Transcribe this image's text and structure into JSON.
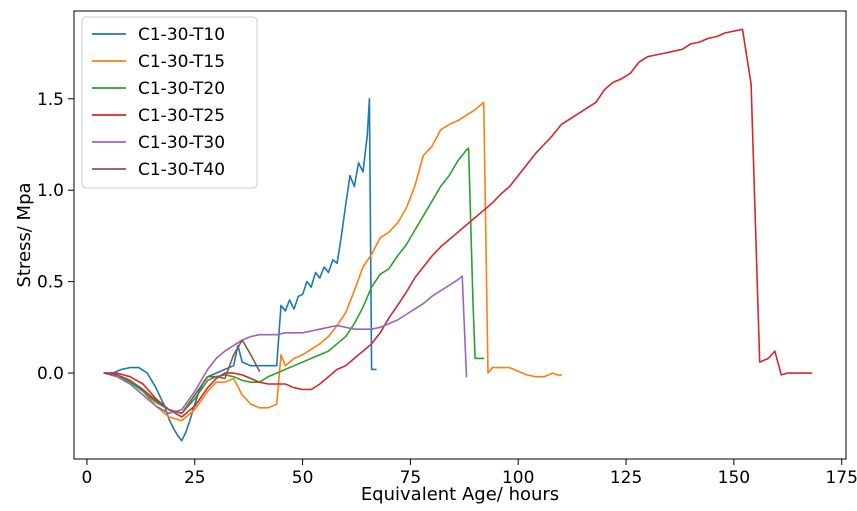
{
  "chart_data": {
    "type": "line",
    "title": "",
    "xlabel": "Equivalent Age/ hours",
    "ylabel": "Stress/ Mpa",
    "xlim": [
      -3,
      176
    ],
    "ylim": [
      -0.47,
      1.98
    ],
    "xticks": [
      0,
      25,
      50,
      75,
      100,
      125,
      150,
      175
    ],
    "yticks": [
      0.0,
      0.5,
      1.0,
      1.5
    ],
    "ytick_labels": [
      "0.0",
      "0.5",
      "1.0",
      "1.5"
    ],
    "grid": false,
    "legend_position": "upper-left",
    "series": [
      {
        "name": "C1-30-T10",
        "color": "#1f77b4",
        "x": [
          4,
          6,
          8,
          10,
          12,
          14,
          16,
          18,
          19,
          20,
          21,
          22,
          23,
          24,
          25,
          26,
          27,
          28,
          30,
          32,
          34,
          35,
          36,
          38,
          40,
          42,
          44,
          45,
          46,
          47,
          48,
          49,
          50,
          51,
          52,
          53,
          54,
          55,
          56,
          57,
          58,
          59,
          60,
          61,
          62,
          63,
          64,
          65,
          65.5,
          66,
          66.5,
          67
        ],
        "y": [
          0.0,
          0.0,
          0.02,
          0.03,
          0.03,
          0.0,
          -0.08,
          -0.18,
          -0.25,
          -0.3,
          -0.34,
          -0.37,
          -0.32,
          -0.25,
          -0.17,
          -0.1,
          -0.05,
          -0.02,
          0.0,
          0.02,
          0.04,
          0.15,
          0.06,
          0.04,
          0.04,
          0.04,
          0.04,
          0.37,
          0.34,
          0.4,
          0.35,
          0.42,
          0.43,
          0.5,
          0.47,
          0.55,
          0.52,
          0.58,
          0.55,
          0.62,
          0.6,
          0.75,
          0.92,
          1.08,
          1.02,
          1.15,
          1.1,
          1.3,
          1.5,
          0.02,
          0.02,
          0.02
        ]
      },
      {
        "name": "C1-30-T15",
        "color": "#ff7f0e",
        "x": [
          4,
          7,
          10,
          13,
          16,
          19,
          22,
          25,
          28,
          30,
          32,
          34,
          36,
          38,
          40,
          42,
          44,
          45,
          46,
          48,
          50,
          52,
          54,
          56,
          58,
          60,
          62,
          64,
          66,
          68,
          70,
          72,
          74,
          76,
          78,
          80,
          82,
          84,
          86,
          88,
          90,
          92,
          93,
          94,
          96,
          98,
          100,
          102,
          104,
          106,
          108,
          109,
          110
        ],
        "y": [
          0.0,
          -0.01,
          -0.04,
          -0.1,
          -0.18,
          -0.24,
          -0.26,
          -0.2,
          -0.1,
          -0.05,
          -0.05,
          -0.03,
          -0.12,
          -0.17,
          -0.19,
          -0.19,
          -0.17,
          0.1,
          0.04,
          0.08,
          0.1,
          0.13,
          0.16,
          0.2,
          0.26,
          0.33,
          0.45,
          0.58,
          0.65,
          0.74,
          0.77,
          0.82,
          0.9,
          1.02,
          1.19,
          1.24,
          1.33,
          1.36,
          1.38,
          1.41,
          1.44,
          1.48,
          0.0,
          0.03,
          0.03,
          0.03,
          0.01,
          -0.01,
          -0.02,
          -0.02,
          0.0,
          -0.01,
          -0.01
        ]
      },
      {
        "name": "C1-30-T20",
        "color": "#2ca02c",
        "x": [
          4,
          7,
          10,
          13,
          16,
          19,
          22,
          25,
          28,
          30,
          32,
          34,
          36,
          38,
          40,
          42,
          44,
          46,
          48,
          50,
          52,
          54,
          56,
          58,
          60,
          62,
          64,
          66,
          68,
          70,
          72,
          74,
          76,
          78,
          80,
          82,
          84,
          86,
          88,
          88.5,
          89.5,
          90,
          91,
          92
        ],
        "y": [
          0.0,
          -0.01,
          -0.05,
          -0.1,
          -0.16,
          -0.2,
          -0.22,
          -0.14,
          -0.04,
          -0.02,
          -0.01,
          -0.02,
          -0.04,
          -0.05,
          -0.05,
          -0.02,
          0.0,
          0.02,
          0.04,
          0.06,
          0.08,
          0.1,
          0.12,
          0.16,
          0.2,
          0.27,
          0.36,
          0.47,
          0.54,
          0.57,
          0.64,
          0.7,
          0.78,
          0.86,
          0.94,
          1.02,
          1.08,
          1.16,
          1.22,
          1.23,
          0.4,
          0.08,
          0.08,
          0.08
        ]
      },
      {
        "name": "C1-30-T25",
        "color": "#d62728",
        "x": [
          4,
          7,
          10,
          13,
          16,
          19,
          22,
          25,
          28,
          30,
          32,
          34,
          36,
          38,
          40,
          42,
          44,
          46,
          48,
          50,
          52,
          54,
          56,
          58,
          60,
          62,
          64,
          66,
          68,
          70,
          72,
          74,
          76,
          78,
          80,
          82,
          84,
          86,
          88,
          90,
          92,
          94,
          96,
          98,
          100,
          102,
          104,
          106,
          108,
          110,
          112,
          114,
          116,
          118,
          120,
          122,
          124,
          126,
          128,
          130,
          132,
          134,
          136,
          138,
          140,
          142,
          144,
          146,
          148,
          150,
          152,
          154,
          156,
          158,
          159.5,
          161,
          162.5,
          164,
          167,
          168
        ],
        "y": [
          0.0,
          0.0,
          -0.02,
          -0.06,
          -0.14,
          -0.2,
          -0.24,
          -0.18,
          -0.08,
          -0.03,
          0.0,
          0.0,
          -0.01,
          -0.03,
          -0.05,
          -0.06,
          -0.06,
          -0.06,
          -0.08,
          -0.09,
          -0.09,
          -0.06,
          -0.02,
          0.02,
          0.04,
          0.08,
          0.12,
          0.16,
          0.22,
          0.3,
          0.37,
          0.44,
          0.52,
          0.58,
          0.64,
          0.69,
          0.73,
          0.77,
          0.81,
          0.85,
          0.89,
          0.93,
          0.98,
          1.02,
          1.08,
          1.14,
          1.2,
          1.25,
          1.3,
          1.36,
          1.39,
          1.42,
          1.45,
          1.48,
          1.55,
          1.59,
          1.61,
          1.64,
          1.7,
          1.73,
          1.74,
          1.75,
          1.76,
          1.77,
          1.8,
          1.81,
          1.83,
          1.84,
          1.86,
          1.87,
          1.88,
          1.58,
          0.06,
          0.08,
          0.12,
          -0.01,
          0.0,
          0.0,
          0.0,
          0.0
        ],
        "y_override_note": ""
      },
      {
        "name": "C1-30-T30",
        "color": "#9467bd",
        "x": [
          4,
          7,
          10,
          13,
          16,
          19,
          22,
          25,
          28,
          30,
          32,
          34,
          36,
          38,
          40,
          42,
          44,
          46,
          48,
          50,
          52,
          54,
          56,
          58,
          60,
          62,
          64,
          66,
          68,
          70,
          72,
          74,
          76,
          78,
          80,
          82,
          84,
          86,
          87,
          88
        ],
        "y": [
          0.0,
          -0.02,
          -0.06,
          -0.12,
          -0.18,
          -0.22,
          -0.2,
          -0.1,
          0.02,
          0.08,
          0.12,
          0.15,
          0.18,
          0.2,
          0.21,
          0.21,
          0.21,
          0.22,
          0.22,
          0.22,
          0.23,
          0.24,
          0.25,
          0.26,
          0.25,
          0.24,
          0.24,
          0.24,
          0.25,
          0.27,
          0.29,
          0.32,
          0.35,
          0.38,
          0.42,
          0.45,
          0.48,
          0.51,
          0.53,
          -0.02
        ]
      },
      {
        "name": "C1-30-T40",
        "color": "#8c564b",
        "x": [
          4,
          7,
          10,
          13,
          16,
          19,
          22,
          25,
          28,
          30,
          32,
          34,
          36,
          38,
          40
        ],
        "y": [
          0.0,
          -0.01,
          -0.04,
          -0.09,
          -0.15,
          -0.2,
          -0.22,
          -0.12,
          -0.02,
          -0.02,
          -0.03,
          0.1,
          0.18,
          0.1,
          0.01
        ]
      }
    ]
  }
}
